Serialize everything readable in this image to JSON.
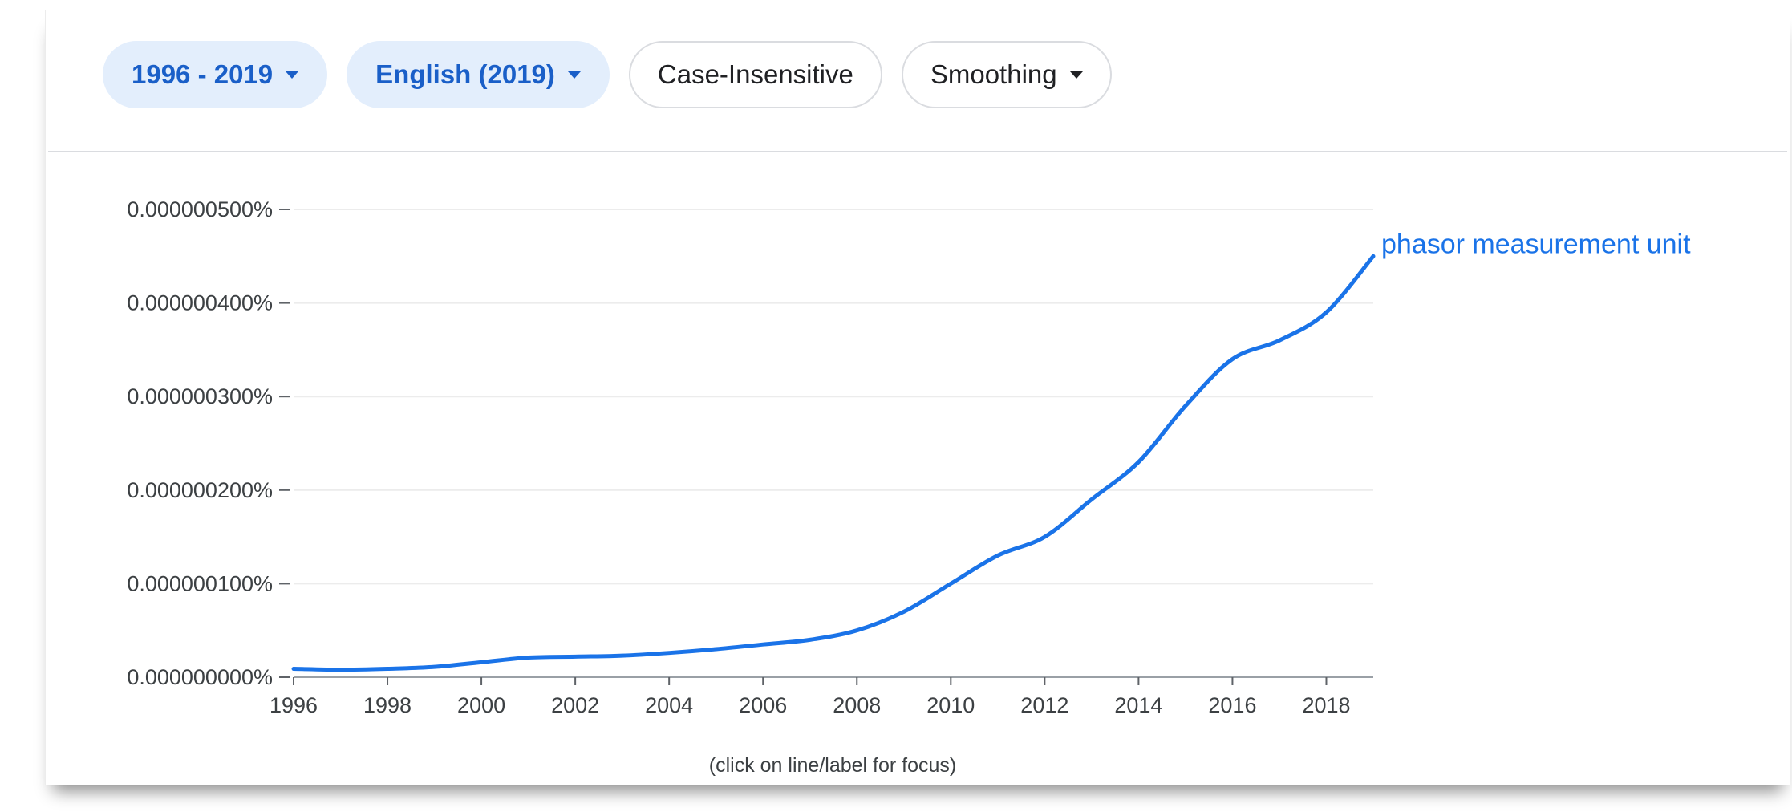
{
  "toolbar": {
    "year_range": "1996 - 2019",
    "corpus": "English (2019)",
    "case": "Case-Insensitive",
    "smoothing": "Smoothing"
  },
  "colors": {
    "line": "#1a73e8",
    "chip_active_bg": "#e3eefc",
    "chip_active_text": "#1a5fc8",
    "grid": "#ececec",
    "axis": "#9aa0a6"
  },
  "icons": [
    "chevron-down-icon"
  ],
  "footer": {
    "hint": "(click on line/label for focus)"
  },
  "chart_data": {
    "type": "line",
    "title": "",
    "xlabel": "",
    "ylabel": "",
    "xlim": [
      1996,
      2019
    ],
    "ylim": [
      0,
      5e-07
    ],
    "grid": true,
    "x_ticks": [
      1996,
      1998,
      2000,
      2002,
      2004,
      2006,
      2008,
      2010,
      2012,
      2014,
      2016,
      2018
    ],
    "y_ticks": [
      0,
      1e-07,
      2e-07,
      3e-07,
      4e-07,
      5e-07
    ],
    "y_tick_labels": [
      "0.000000000%",
      "0.000000100%",
      "0.000000200%",
      "0.000000300%",
      "0.000000400%",
      "0.000000500%"
    ],
    "series": [
      {
        "name": "phasor measurement unit",
        "x": [
          1996,
          1997,
          1998,
          1999,
          2000,
          2001,
          2002,
          2003,
          2004,
          2005,
          2006,
          2007,
          2008,
          2009,
          2010,
          2011,
          2012,
          2013,
          2014,
          2015,
          2016,
          2017,
          2018,
          2019
        ],
        "y": [
          9e-09,
          8e-09,
          9e-09,
          1.1e-08,
          1.6e-08,
          2.1e-08,
          2.2e-08,
          2.3e-08,
          2.6e-08,
          3e-08,
          3.5e-08,
          4e-08,
          5e-08,
          7e-08,
          1e-07,
          1.3e-07,
          1.5e-07,
          1.9e-07,
          2.3e-07,
          2.9e-07,
          3.4e-07,
          3.6e-07,
          3.9e-07,
          4.5e-07
        ]
      }
    ]
  }
}
